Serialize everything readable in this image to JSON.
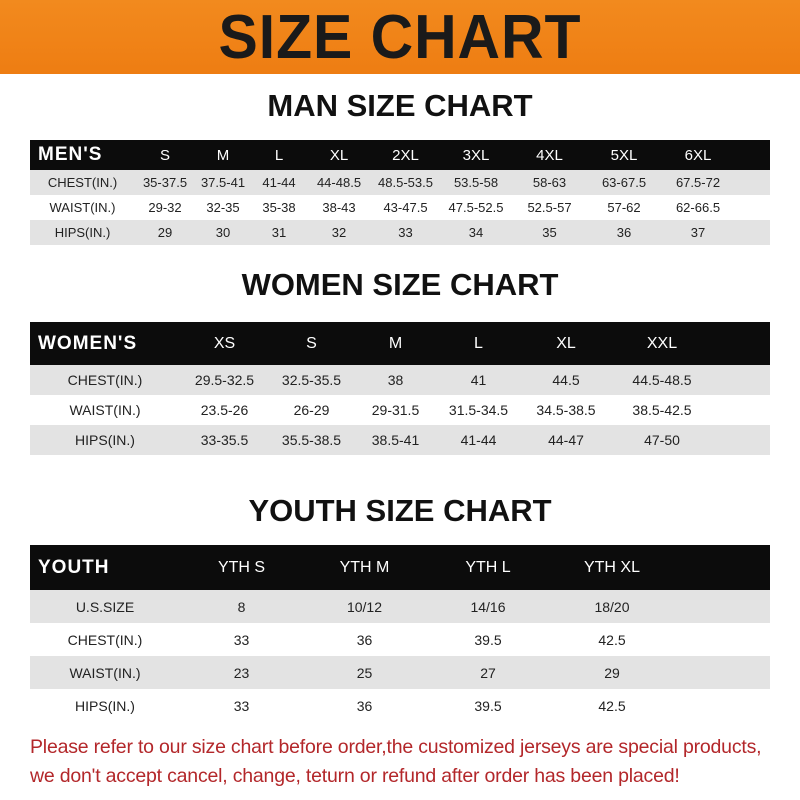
{
  "banner": "SIZE CHART",
  "men": {
    "title": "MAN SIZE CHART",
    "header": "MEN'S",
    "sizes": [
      "S",
      "M",
      "L",
      "XL",
      "2XL",
      "3XL",
      "4XL",
      "5XL",
      "6XL"
    ],
    "rows": [
      {
        "label": "CHEST(IN.)",
        "values": [
          "35-37.5",
          "37.5-41",
          "41-44",
          "44-48.5",
          "48.5-53.5",
          "53.5-58",
          "58-63",
          "63-67.5",
          "67.5-72"
        ]
      },
      {
        "label": "WAIST(IN.)",
        "values": [
          "29-32",
          "32-35",
          "35-38",
          "38-43",
          "43-47.5",
          "47.5-52.5",
          "52.5-57",
          "57-62",
          "62-66.5"
        ]
      },
      {
        "label": "HIPS(IN.)",
        "values": [
          "29",
          "30",
          "31",
          "32",
          "33",
          "34",
          "35",
          "36",
          "37"
        ]
      }
    ]
  },
  "women": {
    "title": "WOMEN SIZE CHART",
    "header": "WOMEN'S",
    "sizes": [
      "XS",
      "S",
      "M",
      "L",
      "XL",
      "XXL"
    ],
    "rows": [
      {
        "label": "CHEST(IN.)",
        "values": [
          "29.5-32.5",
          "32.5-35.5",
          "38",
          "41",
          "44.5",
          "44.5-48.5"
        ]
      },
      {
        "label": "WAIST(IN.)",
        "values": [
          "23.5-26",
          "26-29",
          "29-31.5",
          "31.5-34.5",
          "34.5-38.5",
          "38.5-42.5"
        ]
      },
      {
        "label": "HIPS(IN.)",
        "values": [
          "33-35.5",
          "35.5-38.5",
          "38.5-41",
          "41-44",
          "44-47",
          "47-50"
        ]
      }
    ]
  },
  "youth": {
    "title": "YOUTH SIZE CHART",
    "header": "YOUTH",
    "sizes": [
      "YTH S",
      "YTH M",
      "YTH L",
      "YTH XL"
    ],
    "rows": [
      {
        "label": "U.S.SIZE",
        "values": [
          "8",
          "10/12",
          "14/16",
          "18/20"
        ]
      },
      {
        "label": "CHEST(IN.)",
        "values": [
          "33",
          "36",
          "39.5",
          "42.5"
        ]
      },
      {
        "label": "WAIST(IN.)",
        "values": [
          "23",
          "25",
          "27",
          "29"
        ]
      },
      {
        "label": "HIPS(IN.)",
        "values": [
          "33",
          "36",
          "39.5",
          "42.5"
        ]
      }
    ]
  },
  "footer": {
    "line1": "Please refer to our size chart before order,the customized jerseys are special products,",
    "line2": "we don't accept cancel, change, teturn or refund after order has been placed!"
  },
  "colors": {
    "banner": "#f28a1e",
    "header": "#0c0c0c",
    "footer_text": "#b3272a",
    "stripe": "#e3e3e3"
  }
}
